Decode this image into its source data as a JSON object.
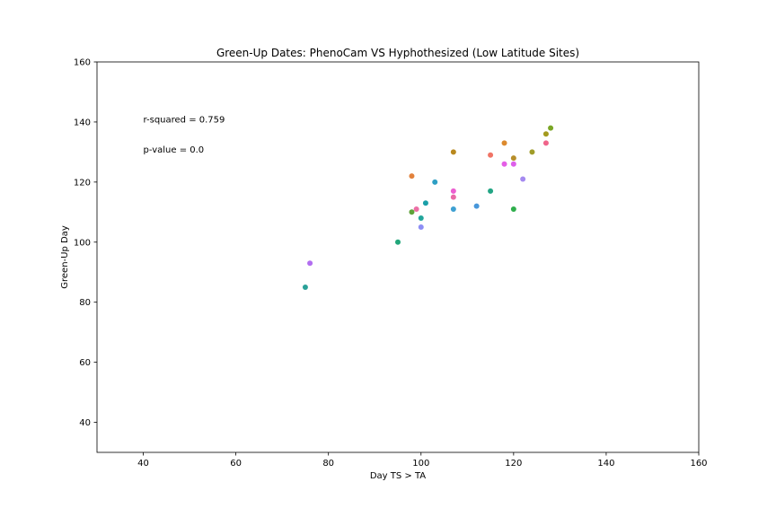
{
  "chart_data": {
    "type": "scatter",
    "title": "Green-Up Dates: PhenoCam VS Hyphothesized (Low Latitude Sites)",
    "xlabel": "Day TS > TA",
    "ylabel": "Green-Up Day",
    "xlim": [
      30,
      160
    ],
    "ylim": [
      30,
      160
    ],
    "xticks": [
      "40",
      "60",
      "80",
      "100",
      "120",
      "140",
      "160"
    ],
    "yticks": [
      "40",
      "60",
      "80",
      "100",
      "120",
      "140",
      "160"
    ],
    "grid": false,
    "annotations": [
      {
        "text": "r-squared = 0.759",
        "x": 40,
        "y": 140
      },
      {
        "text": "p-value = 0.0",
        "x": 40,
        "y": 130
      }
    ],
    "points": [
      {
        "x": 75,
        "y": 85,
        "color": "#2aa198"
      },
      {
        "x": 76,
        "y": 93,
        "color": "#b26ef0"
      },
      {
        "x": 95,
        "y": 100,
        "color": "#21a67a"
      },
      {
        "x": 98,
        "y": 122,
        "color": "#e2823c"
      },
      {
        "x": 98,
        "y": 110,
        "color": "#5fa23a"
      },
      {
        "x": 99,
        "y": 111,
        "color": "#ec6fa5"
      },
      {
        "x": 100,
        "y": 108,
        "color": "#22a59b"
      },
      {
        "x": 100,
        "y": 105,
        "color": "#8d8ef5"
      },
      {
        "x": 101,
        "y": 113,
        "color": "#1a9fa8"
      },
      {
        "x": 103,
        "y": 120,
        "color": "#2e9fc4"
      },
      {
        "x": 107,
        "y": 130,
        "color": "#b9891e"
      },
      {
        "x": 107,
        "y": 117,
        "color": "#ec5fd1"
      },
      {
        "x": 107,
        "y": 115,
        "color": "#e96aa8"
      },
      {
        "x": 107,
        "y": 111,
        "color": "#3ea0d2"
      },
      {
        "x": 112,
        "y": 112,
        "color": "#4897da"
      },
      {
        "x": 115,
        "y": 129,
        "color": "#f07466"
      },
      {
        "x": 115,
        "y": 117,
        "color": "#22a584"
      },
      {
        "x": 118,
        "y": 133,
        "color": "#dc8a2e"
      },
      {
        "x": 118,
        "y": 126,
        "color": "#e45ee6"
      },
      {
        "x": 120,
        "y": 128,
        "color": "#b78e2a"
      },
      {
        "x": 120,
        "y": 126,
        "color": "#dd5fea"
      },
      {
        "x": 120,
        "y": 111,
        "color": "#2fae4c"
      },
      {
        "x": 122,
        "y": 121,
        "color": "#a58af0"
      },
      {
        "x": 124,
        "y": 130,
        "color": "#a09c28"
      },
      {
        "x": 127,
        "y": 136,
        "color": "#a39a1e"
      },
      {
        "x": 127,
        "y": 133,
        "color": "#f0648a"
      },
      {
        "x": 128,
        "y": 138,
        "color": "#7aa626"
      }
    ]
  }
}
